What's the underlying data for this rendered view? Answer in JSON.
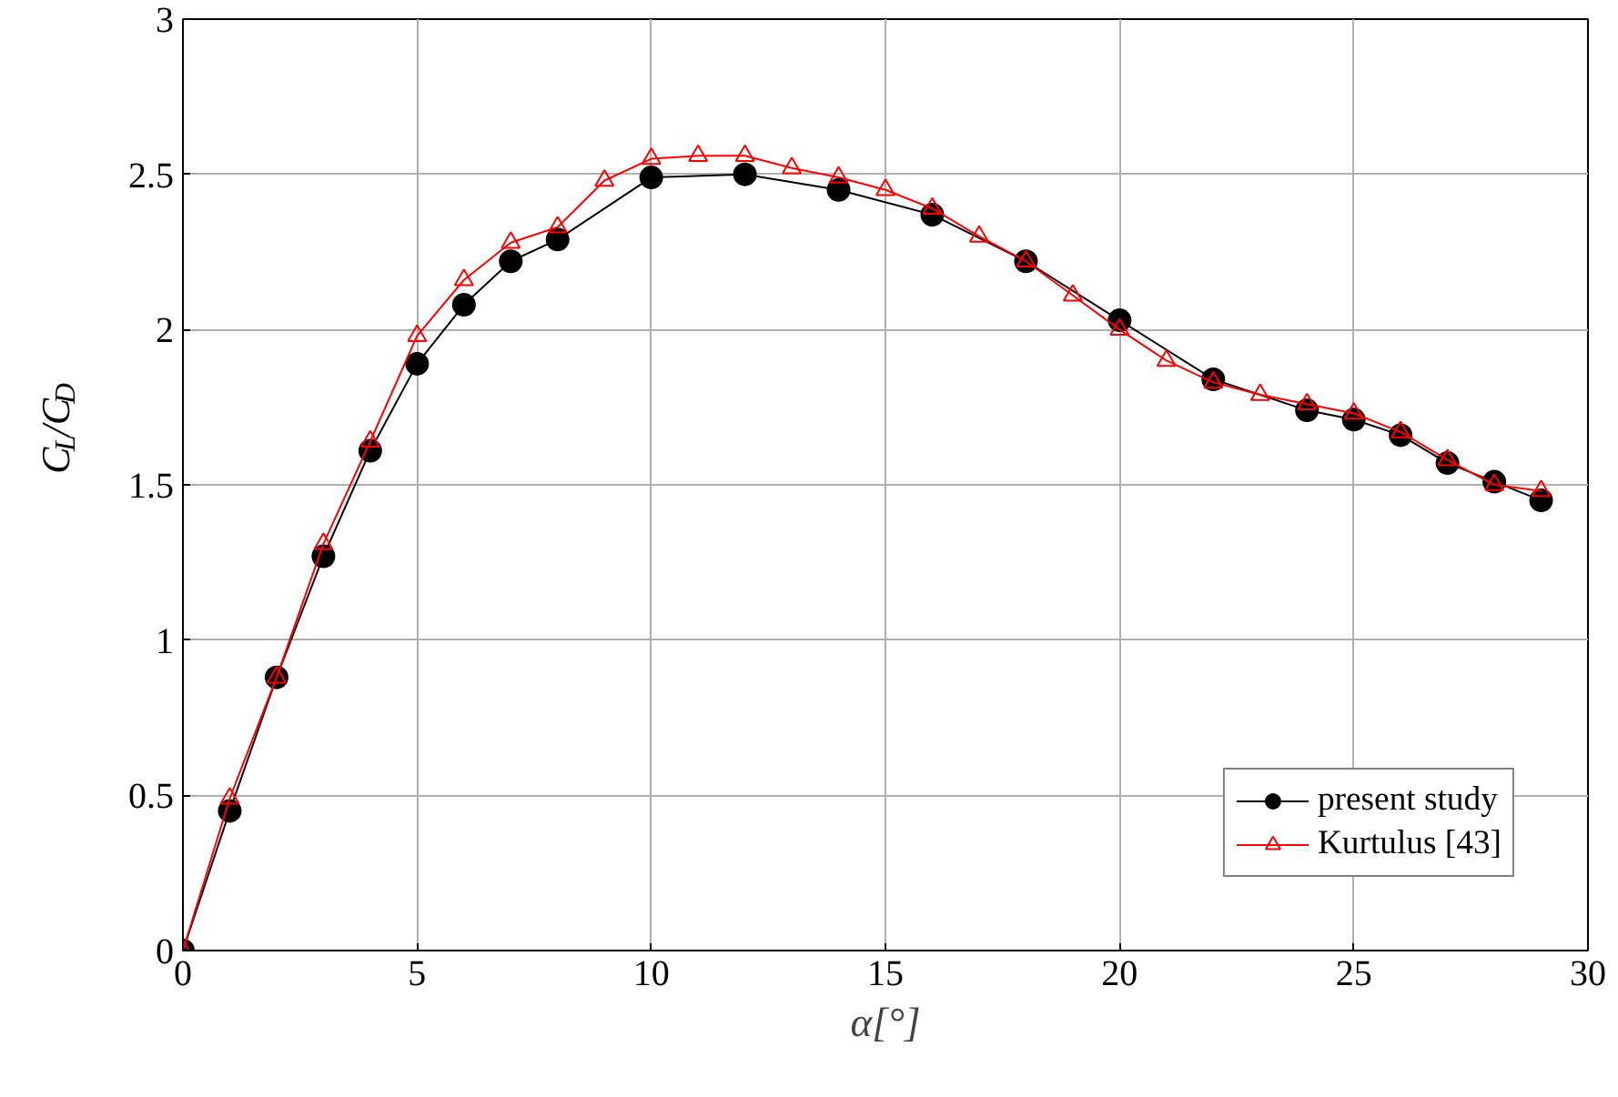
{
  "chart_data": {
    "type": "line",
    "xlabel": "α[°]",
    "ylabel": "C$_{L}$/C$_{D}$",
    "xlim": [
      0,
      30
    ],
    "ylim": [
      0,
      3
    ],
    "xticks": [
      0,
      5,
      10,
      15,
      20,
      25,
      30
    ],
    "yticks": [
      0,
      0.5,
      1,
      1.5,
      2,
      2.5,
      3
    ],
    "grid": true,
    "legend": "bottom right",
    "line_style": "solid",
    "series": [
      {
        "name": "present study",
        "color": "#000000",
        "marker": "circle",
        "x": [
          0,
          1,
          2,
          3,
          4,
          5,
          6,
          7,
          8,
          10,
          12,
          14,
          16,
          18,
          20,
          22,
          24,
          25,
          26,
          27,
          28,
          29
        ],
        "values": [
          0,
          0.45,
          0.88,
          1.27,
          1.61,
          1.89,
          2.08,
          2.22,
          2.29,
          2.49,
          2.5,
          2.45,
          2.37,
          2.22,
          2.03,
          1.84,
          1.74,
          1.71,
          1.66,
          1.57,
          1.51,
          1.45
        ]
      },
      {
        "name": "Kurtulus [43]",
        "color": "#ff0000",
        "marker": "triangle",
        "x": [
          0,
          1,
          2,
          3,
          4,
          5,
          6,
          7,
          8,
          9,
          10,
          11,
          12,
          13,
          14,
          15,
          16,
          17,
          18,
          19,
          20,
          21,
          22,
          23,
          24,
          25,
          26,
          27,
          28,
          29
        ],
        "values": [
          0,
          0.49,
          0.88,
          1.31,
          1.64,
          1.98,
          2.16,
          2.28,
          2.33,
          2.48,
          2.55,
          2.56,
          2.56,
          2.52,
          2.49,
          2.45,
          2.39,
          2.3,
          2.22,
          2.11,
          2.0,
          1.9,
          1.83,
          1.79,
          1.76,
          1.73,
          1.67,
          1.58,
          1.5,
          1.48
        ]
      }
    ]
  }
}
